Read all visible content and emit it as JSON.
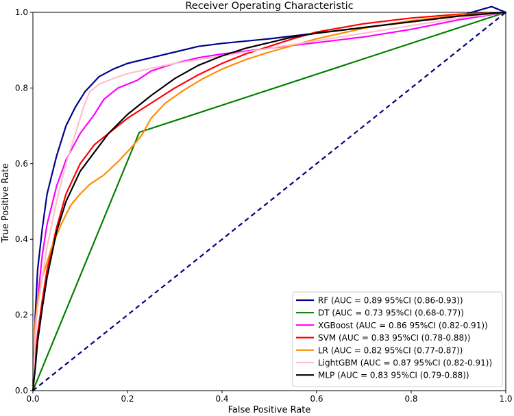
{
  "chart_data": {
    "type": "line",
    "title": "Receiver Operating Characteristic",
    "xlabel": "False Positive Rate",
    "ylabel": "True Positive Rate",
    "xlim": [
      0,
      1
    ],
    "ylim": [
      0,
      1
    ],
    "xticks": [
      "0.0",
      "0.2",
      "0.4",
      "0.6",
      "0.8",
      "1.0"
    ],
    "yticks": [
      "0.0",
      "0.2",
      "0.4",
      "0.6",
      "0.8",
      "1.0"
    ],
    "grid": false,
    "legend_position": "bottom-right",
    "diagonal": {
      "name": "chance",
      "color": "#000080",
      "style": "dashed",
      "x": [
        0,
        1
      ],
      "y": [
        0,
        1
      ]
    },
    "series": [
      {
        "name": "RF",
        "label": "RF (AUC = 0.89 95%CI (0.86-0.93))",
        "color": "#00008b",
        "x": [
          0,
          0.005,
          0.01,
          0.02,
          0.03,
          0.05,
          0.07,
          0.09,
          0.11,
          0.14,
          0.17,
          0.2,
          0.25,
          0.3,
          0.35,
          0.4,
          0.5,
          0.6,
          0.7,
          0.8,
          0.9,
          0.97,
          1.0
        ],
        "y": [
          0,
          0.2,
          0.32,
          0.43,
          0.52,
          0.62,
          0.7,
          0.75,
          0.79,
          0.83,
          0.85,
          0.865,
          0.88,
          0.895,
          0.91,
          0.918,
          0.93,
          0.945,
          0.96,
          0.975,
          0.99,
          1.015,
          1.0
        ]
      },
      {
        "name": "DT",
        "label": "DT (AUC = 0.73 95%CI (0.68-0.77))",
        "color": "#008000",
        "x": [
          0,
          0.225,
          1.0
        ],
        "y": [
          0,
          0.683,
          1.0
        ]
      },
      {
        "name": "XGBoost",
        "label": "XGBoost (AUC = 0.86 95%CI (0.82-0.91))",
        "color": "#ff00ff",
        "x": [
          0,
          0.005,
          0.01,
          0.02,
          0.03,
          0.05,
          0.07,
          0.1,
          0.13,
          0.15,
          0.18,
          0.22,
          0.25,
          0.3,
          0.35,
          0.4,
          0.5,
          0.6,
          0.7,
          0.8,
          0.9,
          1.0
        ],
        "y": [
          0,
          0.14,
          0.24,
          0.36,
          0.44,
          0.54,
          0.61,
          0.68,
          0.73,
          0.77,
          0.8,
          0.82,
          0.845,
          0.865,
          0.88,
          0.89,
          0.905,
          0.92,
          0.935,
          0.955,
          0.98,
          1.0
        ]
      },
      {
        "name": "SVM",
        "label": "SVM (AUC = 0.83 95%CI (0.78-0.88))",
        "color": "#ff0000",
        "x": [
          0,
          0.005,
          0.01,
          0.02,
          0.03,
          0.05,
          0.07,
          0.1,
          0.13,
          0.16,
          0.2,
          0.25,
          0.3,
          0.35,
          0.4,
          0.45,
          0.5,
          0.55,
          0.6,
          0.7,
          0.8,
          0.9,
          1.0
        ],
        "y": [
          0,
          0.08,
          0.15,
          0.24,
          0.32,
          0.43,
          0.52,
          0.6,
          0.65,
          0.68,
          0.72,
          0.76,
          0.8,
          0.835,
          0.865,
          0.89,
          0.91,
          0.93,
          0.948,
          0.97,
          0.985,
          0.995,
          1.0
        ]
      },
      {
        "name": "LR",
        "label": "LR (AUC = 0.82 95%CI (0.77-0.87))",
        "color": "#ff8c00",
        "x": [
          0,
          0.005,
          0.01,
          0.02,
          0.04,
          0.06,
          0.08,
          0.1,
          0.12,
          0.15,
          0.18,
          0.21,
          0.23,
          0.25,
          0.28,
          0.32,
          0.36,
          0.4,
          0.45,
          0.5,
          0.6,
          0.7,
          0.8,
          0.9,
          1.0
        ],
        "y": [
          0,
          0.18,
          0.24,
          0.3,
          0.38,
          0.44,
          0.49,
          0.52,
          0.545,
          0.57,
          0.605,
          0.645,
          0.675,
          0.72,
          0.76,
          0.795,
          0.825,
          0.85,
          0.875,
          0.895,
          0.93,
          0.958,
          0.978,
          0.992,
          1.0
        ]
      },
      {
        "name": "LightGBM",
        "label": "LightGBM (AUC = 0.87 95%CI (0.82-0.91))",
        "color": "#ffc0cb",
        "x": [
          0,
          0.005,
          0.01,
          0.02,
          0.03,
          0.05,
          0.07,
          0.09,
          0.1,
          0.11,
          0.12,
          0.14,
          0.17,
          0.2,
          0.25,
          0.3,
          0.4,
          0.5,
          0.6,
          0.7,
          0.8,
          0.9,
          1.0
        ],
        "y": [
          0,
          0.15,
          0.22,
          0.3,
          0.38,
          0.5,
          0.6,
          0.68,
          0.72,
          0.76,
          0.79,
          0.81,
          0.825,
          0.838,
          0.852,
          0.865,
          0.885,
          0.905,
          0.925,
          0.945,
          0.965,
          0.985,
          1.0
        ]
      },
      {
        "name": "MLP",
        "label": "MLP (AUC = 0.83 95%CI (0.79-0.88))",
        "color": "#000000",
        "x": [
          0,
          0.005,
          0.01,
          0.02,
          0.03,
          0.05,
          0.07,
          0.1,
          0.13,
          0.16,
          0.2,
          0.25,
          0.3,
          0.35,
          0.4,
          0.45,
          0.5,
          0.55,
          0.6,
          0.7,
          0.8,
          0.9,
          1.0
        ],
        "y": [
          0,
          0.06,
          0.13,
          0.22,
          0.3,
          0.42,
          0.5,
          0.58,
          0.63,
          0.68,
          0.73,
          0.78,
          0.825,
          0.86,
          0.885,
          0.905,
          0.92,
          0.935,
          0.945,
          0.96,
          0.975,
          0.99,
          1.0
        ]
      }
    ]
  }
}
